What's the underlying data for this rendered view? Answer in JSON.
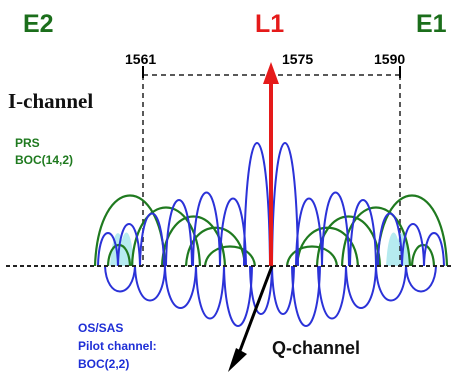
{
  "bands": {
    "e2": "E2",
    "l1": "L1",
    "e1": "E1"
  },
  "frequencies": {
    "f1561": "1561",
    "f1575": "1575",
    "f1590": "1590"
  },
  "axes": {
    "i_channel": "I-channel",
    "q_channel": "Q-channel"
  },
  "signals": {
    "prs_line1": "PRS",
    "prs_line2": "BOC(14,2)",
    "os_line1": "OS/SAS",
    "os_line2": "Pilot channel:",
    "os_line3": "BOC(2,2)"
  },
  "colors": {
    "band_label": "#1b6e1b",
    "l1_label": "#e51a1a",
    "prs_lobes": "#1f7a1f",
    "os_lobes": "#2b32d8",
    "carrier_arrow": "#e51a1a",
    "q_arrow": "#000000",
    "pilot_fill": "#8fe0e8"
  }
}
